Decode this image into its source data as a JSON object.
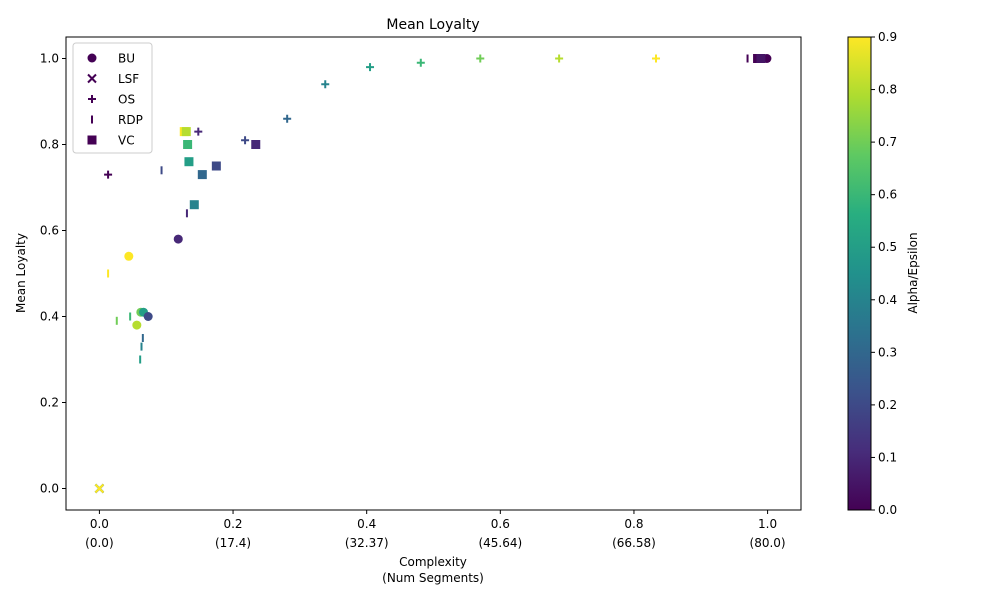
{
  "chart_data": {
    "type": "scatter",
    "title": "Mean Loyalty",
    "xlabel_line1": "Complexity",
    "xlabel_line2": "(Num Segments)",
    "ylabel": "Mean Loyalty",
    "xlim": [
      -0.05,
      1.05
    ],
    "ylim": [
      -0.05,
      1.05
    ],
    "x_ticks": [
      {
        "value": 0.0,
        "label": "0.0",
        "sub": "(0.0)"
      },
      {
        "value": 0.2,
        "label": "0.2",
        "sub": "(17.4)"
      },
      {
        "value": 0.4,
        "label": "0.4",
        "sub": "(32.37)"
      },
      {
        "value": 0.6,
        "label": "0.6",
        "sub": "(45.64)"
      },
      {
        "value": 0.8,
        "label": "0.8",
        "sub": "(66.58)"
      },
      {
        "value": 1.0,
        "label": "1.0",
        "sub": "(80.0)"
      }
    ],
    "y_ticks": [
      {
        "value": 0.0,
        "label": "0.0"
      },
      {
        "value": 0.2,
        "label": "0.2"
      },
      {
        "value": 0.4,
        "label": "0.4"
      },
      {
        "value": 0.6,
        "label": "0.6"
      },
      {
        "value": 0.8,
        "label": "0.8"
      },
      {
        "value": 1.0,
        "label": "1.0"
      }
    ],
    "grid": false,
    "legend_placement": "upper-left",
    "colormap": "viridis",
    "colorbar": {
      "label": "Alpha/Epsilon",
      "range": [
        0.0,
        0.9
      ],
      "ticks": [
        {
          "value": 0.0,
          "label": "0.0"
        },
        {
          "value": 0.1,
          "label": "0.1"
        },
        {
          "value": 0.2,
          "label": "0.2"
        },
        {
          "value": 0.3,
          "label": "0.3"
        },
        {
          "value": 0.4,
          "label": "0.4"
        },
        {
          "value": 0.5,
          "label": "0.5"
        },
        {
          "value": 0.6,
          "label": "0.6"
        },
        {
          "value": 0.7,
          "label": "0.7"
        },
        {
          "value": 0.8,
          "label": "0.8"
        },
        {
          "value": 0.9,
          "label": "0.9"
        }
      ]
    },
    "series": [
      {
        "name": "BU",
        "marker": "circle",
        "points": [
          {
            "x": 0.044,
            "y": 0.54,
            "c": 0.9
          },
          {
            "x": 0.056,
            "y": 0.38,
            "c": 0.8
          },
          {
            "x": 0.062,
            "y": 0.41,
            "c": 0.7
          },
          {
            "x": 0.066,
            "y": 0.41,
            "c": 0.5
          },
          {
            "x": 0.073,
            "y": 0.4,
            "c": 0.2
          },
          {
            "x": 0.118,
            "y": 0.58,
            "c": 0.1
          },
          {
            "x": 0.999,
            "y": 1.0,
            "c": 0.0
          }
        ]
      },
      {
        "name": "LSF",
        "marker": "x",
        "points": [
          {
            "x": 0.0,
            "y": 0.0,
            "c": 0.0
          },
          {
            "x": 0.0,
            "y": 0.0,
            "c": 0.3
          },
          {
            "x": 0.0,
            "y": 0.0,
            "c": 0.6
          },
          {
            "x": 0.0,
            "y": 0.0,
            "c": 0.9
          }
        ]
      },
      {
        "name": "OS",
        "marker": "plus",
        "points": [
          {
            "x": 0.013,
            "y": 0.73,
            "c": 0.0
          },
          {
            "x": 0.148,
            "y": 0.83,
            "c": 0.1
          },
          {
            "x": 0.218,
            "y": 0.81,
            "c": 0.2
          },
          {
            "x": 0.281,
            "y": 0.86,
            "c": 0.3
          },
          {
            "x": 0.338,
            "y": 0.94,
            "c": 0.4
          },
          {
            "x": 0.405,
            "y": 0.98,
            "c": 0.5
          },
          {
            "x": 0.481,
            "y": 0.99,
            "c": 0.6
          },
          {
            "x": 0.57,
            "y": 1.0,
            "c": 0.7
          },
          {
            "x": 0.688,
            "y": 1.0,
            "c": 0.8
          },
          {
            "x": 0.833,
            "y": 1.0,
            "c": 0.9
          }
        ]
      },
      {
        "name": "RDP",
        "marker": "vline",
        "points": [
          {
            "x": 0.013,
            "y": 0.5,
            "c": 0.9
          },
          {
            "x": 0.026,
            "y": 0.39,
            "c": 0.7
          },
          {
            "x": 0.046,
            "y": 0.4,
            "c": 0.6
          },
          {
            "x": 0.061,
            "y": 0.3,
            "c": 0.5
          },
          {
            "x": 0.063,
            "y": 0.33,
            "c": 0.4
          },
          {
            "x": 0.065,
            "y": 0.35,
            "c": 0.3
          },
          {
            "x": 0.093,
            "y": 0.74,
            "c": 0.2
          },
          {
            "x": 0.131,
            "y": 0.64,
            "c": 0.1
          },
          {
            "x": 0.97,
            "y": 1.0,
            "c": 0.0
          }
        ]
      },
      {
        "name": "VC",
        "marker": "square",
        "points": [
          {
            "x": 0.127,
            "y": 0.83,
            "c": 0.9
          },
          {
            "x": 0.13,
            "y": 0.83,
            "c": 0.8
          },
          {
            "x": 0.132,
            "y": 0.8,
            "c": 0.6
          },
          {
            "x": 0.134,
            "y": 0.76,
            "c": 0.5
          },
          {
            "x": 0.142,
            "y": 0.66,
            "c": 0.4
          },
          {
            "x": 0.154,
            "y": 0.73,
            "c": 0.3
          },
          {
            "x": 0.175,
            "y": 0.75,
            "c": 0.2
          },
          {
            "x": 0.234,
            "y": 0.8,
            "c": 0.1
          },
          {
            "x": 0.985,
            "y": 1.0,
            "c": 0.0
          },
          {
            "x": 0.99,
            "y": 1.0,
            "c": 0.05
          }
        ]
      }
    ],
    "legend_color": "#440154"
  }
}
